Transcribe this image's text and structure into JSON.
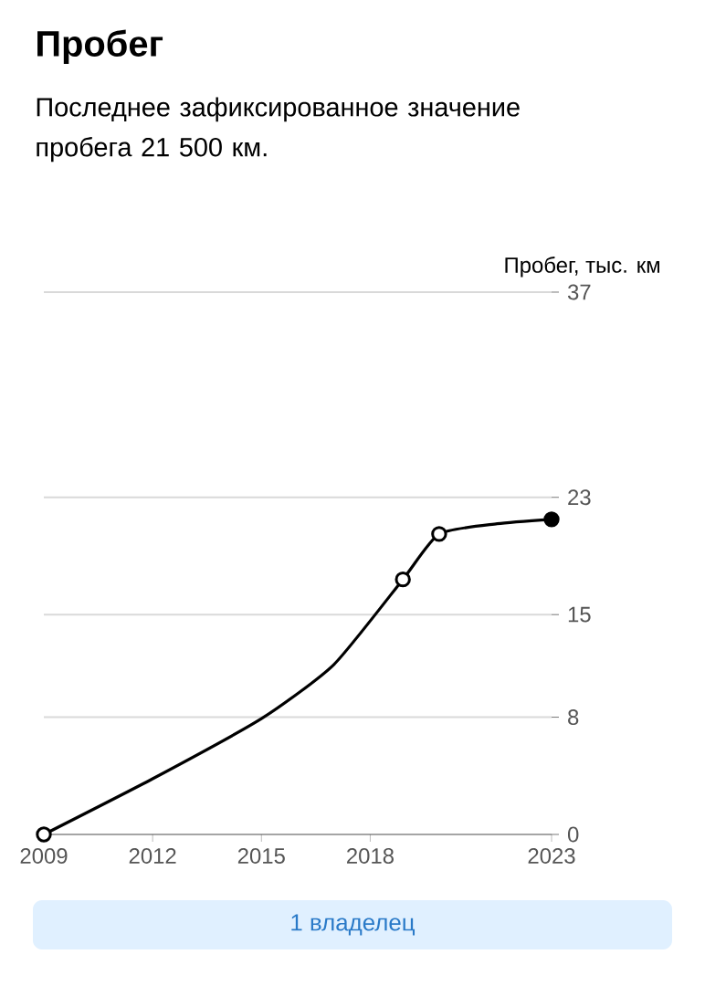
{
  "chart_data": {
    "type": "line",
    "title": "Пробег",
    "subtitle": "Последнее зафиксированное значение пробега 21 500 км.",
    "ylabel": "Пробег, тыс. км",
    "series": [
      {
        "color": "#000000",
        "marker": "none",
        "x": [
          2009,
          2012,
          2015,
          2017,
          2018.9,
          2019.9,
          2021.5,
          2023
        ],
        "values": [
          0,
          3.8,
          7.9,
          11.6,
          17.4,
          20.5,
          21.2,
          21.5
        ]
      },
      {
        "type": "scatter",
        "color": "#000000",
        "marker": "circle",
        "colors": [
          "#ffffff",
          "#ffffff",
          "#ffffff",
          "#000000"
        ],
        "x": [
          2009,
          2018.9,
          2019.9,
          2023
        ],
        "values": [
          0,
          17.4,
          20.5,
          21.5
        ]
      }
    ],
    "xlim": [
      2009,
      2023
    ],
    "xticks": [
      2009,
      2012,
      2015,
      2018,
      2023
    ],
    "ylim": [
      0,
      37
    ],
    "yticks": [
      0,
      8,
      15,
      23,
      37
    ],
    "grid": "y",
    "annotations": [
      "1 владелец"
    ]
  }
}
